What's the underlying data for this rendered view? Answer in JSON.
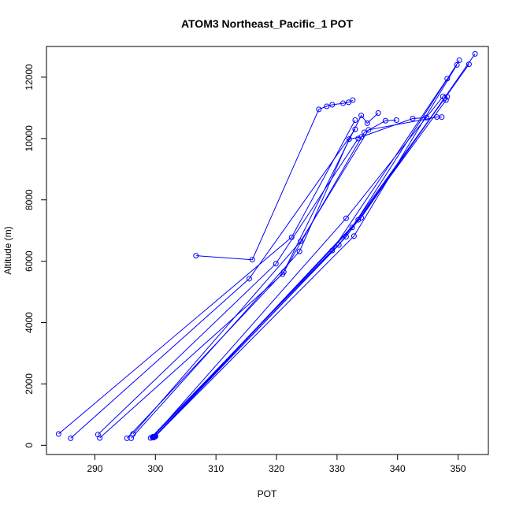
{
  "chart_data": {
    "type": "line",
    "title": "ATOM3 Northeast_Pacific_1 POT",
    "xlabel": "POT",
    "ylabel": "Altitude (m)",
    "xlim": [
      282,
      355
    ],
    "ylim": [
      -300,
      13000
    ],
    "x_ticks": [
      290,
      300,
      310,
      320,
      330,
      340,
      350
    ],
    "y_ticks": [
      0,
      2000,
      4000,
      6000,
      8000,
      10000,
      12000
    ],
    "grid": false,
    "legend": "none",
    "color": "#0000ff",
    "marker": "open-circle",
    "series": [
      {
        "x": [
          306.7,
          316.0,
          327.0,
          328.3,
          329.2,
          331.0,
          331.9,
          332.6
        ],
        "y": [
          6180,
          6050,
          10950,
          11050,
          11100,
          11150,
          11180,
          11250
        ]
      },
      {
        "x": [
          284.0,
          322.5,
          333.0
        ],
        "y": [
          370,
          6780,
          10600
        ]
      },
      {
        "x": [
          286.0,
          315.5,
          333.0
        ],
        "y": [
          230,
          5430,
          10300
        ]
      },
      {
        "x": [
          290.5,
          319.9,
          333.5
        ],
        "y": [
          350,
          5920,
          10000
        ]
      },
      {
        "x": [
          290.8,
          321.0,
          334.0,
          335.0,
          336.8
        ],
        "y": [
          240,
          5580,
          10750,
          10500,
          10830
        ]
      },
      {
        "x": [
          295.3,
          321.2,
          334.5,
          338.0,
          339.8
        ],
        "y": [
          230,
          5650,
          10200,
          10580,
          10600
        ]
      },
      {
        "x": [
          296.0,
          323.8,
          332.0,
          334.0,
          342.5,
          344.8
        ],
        "y": [
          230,
          6320,
          9980,
          10050,
          10650,
          10680
        ]
      },
      {
        "x": [
          296.3,
          324.0,
          335.2,
          346.5,
          347.3
        ],
        "y": [
          370,
          6650,
          10280,
          10700,
          10700
        ]
      },
      {
        "x": [
          299.2,
          329.2,
          348.2
        ],
        "y": [
          240,
          6350,
          11950
        ]
      },
      {
        "x": [
          299.7,
          330.3,
          347.8,
          348.2
        ],
        "y": [
          250,
          6530,
          11320,
          11360
        ]
      },
      {
        "x": [
          300.0,
          331.5,
          348.0
        ],
        "y": [
          290,
          6800,
          11250
        ]
      },
      {
        "x": [
          300.0,
          332.8,
          349.8
        ],
        "y": [
          300,
          6820,
          12400
        ]
      },
      {
        "x": [
          299.5,
          332.5,
          350.2
        ],
        "y": [
          260,
          7100,
          12550
        ]
      },
      {
        "x": [
          299.8,
          333.5,
          351.8
        ],
        "y": [
          270,
          7350,
          12420
        ]
      },
      {
        "x": [
          299.9,
          334.0,
          352.8
        ],
        "y": [
          280,
          7420,
          12760
        ]
      },
      {
        "x": [
          299.6,
          331.5,
          347.5
        ],
        "y": [
          280,
          7400,
          11370
        ]
      }
    ]
  }
}
